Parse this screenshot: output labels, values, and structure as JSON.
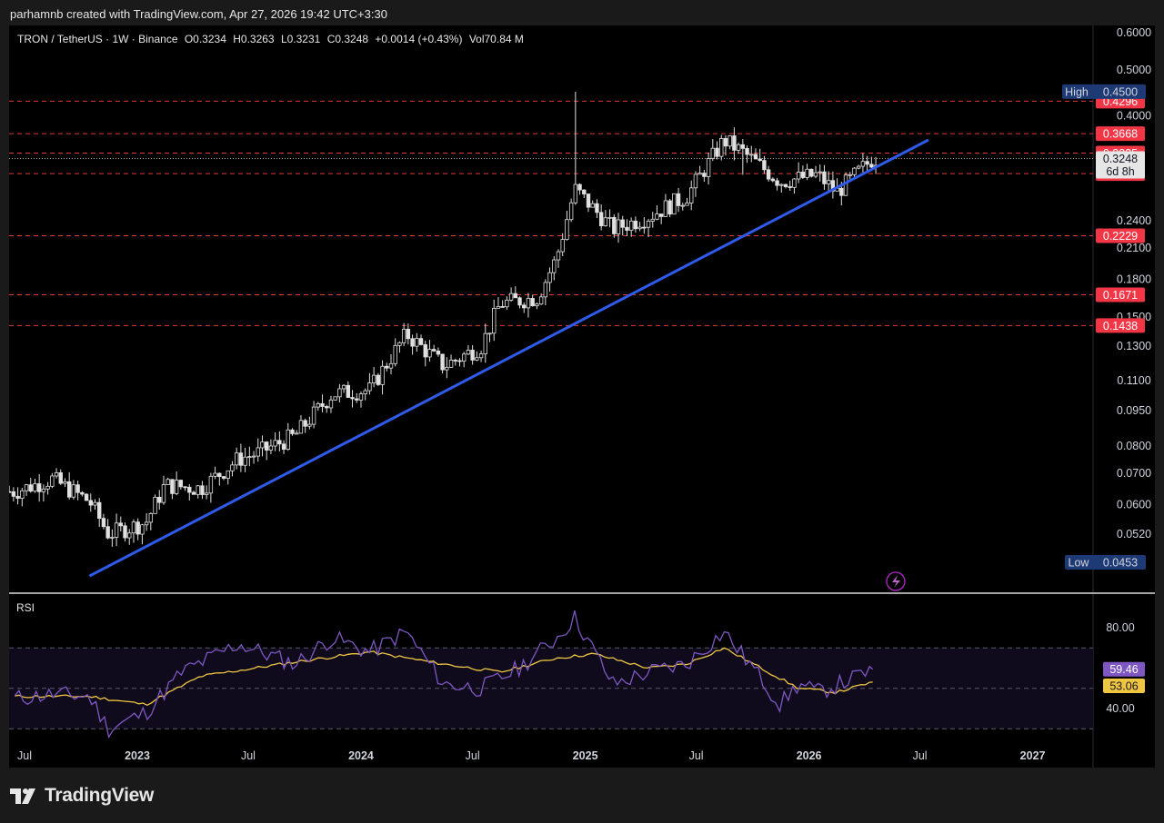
{
  "header": {
    "attribution": "parhamnb created with TradingView.com, Apr 27, 2026 19:42 UTC+3:30"
  },
  "legend": {
    "symbol": "TRON / TetherUS · 1W · Binance",
    "open": "O0.3234",
    "high": "H0.3263",
    "low": "L0.3231",
    "close": "C0.3248",
    "change": "+0.0014 (+0.43%)",
    "volume": "Vol70.84 M"
  },
  "footer": {
    "brand": "TradingView"
  },
  "colors": {
    "background": "#000000",
    "candle": "#e0e0e0",
    "trendline": "#2f5bea",
    "level_line": "#e53935",
    "level_badge": "#f23645",
    "high_low_badge": "#1e3a75",
    "rsi_line": "#7e57c2",
    "rsi_ma": "#f0c542"
  },
  "chart_data": [
    {
      "type": "candlestick",
      "title": "TRON / TetherUS · 1W · Binance",
      "scale": "log",
      "price_axis_ticks": [
        "0.6000",
        "0.5000",
        "0.4000",
        "0.2400",
        "0.2100",
        "0.1800",
        "0.1500",
        "0.1300",
        "0.1100",
        "0.0950",
        "0.0800",
        "0.0700",
        "0.0600",
        "0.0520"
      ],
      "time_axis_ticks": [
        "Jul",
        "2023",
        "Jul",
        "2024",
        "Jul",
        "2025",
        "Jul",
        "2026",
        "Jul",
        "2027"
      ],
      "last_price": "0.3248",
      "countdown": "6d 8h",
      "high_marker": {
        "label": "High",
        "value": "0.4500"
      },
      "low_marker": {
        "label": "Low",
        "value": "0.0453"
      },
      "horizontal_levels": [
        "0.4296",
        "0.3668",
        "0.3335",
        "0.3018",
        "0.2229",
        "0.1671",
        "0.1438"
      ],
      "trendline": {
        "from": {
          "date": "2022-10",
          "price": 0.0424
        },
        "to": {
          "date": "2026-07",
          "price": 0.3558
        }
      },
      "anchors": [
        {
          "date": "2022-06",
          "price": 0.064
        },
        {
          "date": "2022-08",
          "price": 0.068
        },
        {
          "date": "2022-10",
          "price": 0.061
        },
        {
          "date": "2022-11",
          "price": 0.052
        },
        {
          "date": "2023-01",
          "price": 0.055
        },
        {
          "date": "2023-02",
          "price": 0.066
        },
        {
          "date": "2023-04",
          "price": 0.065
        },
        {
          "date": "2023-06",
          "price": 0.075
        },
        {
          "date": "2023-07",
          "price": 0.077
        },
        {
          "date": "2023-09",
          "price": 0.084
        },
        {
          "date": "2023-11",
          "price": 0.103
        },
        {
          "date": "2024-01",
          "price": 0.105
        },
        {
          "date": "2024-03",
          "price": 0.138
        },
        {
          "date": "2024-05",
          "price": 0.118
        },
        {
          "date": "2024-07",
          "price": 0.13
        },
        {
          "date": "2024-08",
          "price": 0.16
        },
        {
          "date": "2024-10",
          "price": 0.165
        },
        {
          "date": "2024-11",
          "price": 0.2
        },
        {
          "date": "2024-12",
          "price": 0.28
        },
        {
          "date": "2025-02",
          "price": 0.23
        },
        {
          "date": "2025-04",
          "price": 0.245
        },
        {
          "date": "2025-06",
          "price": 0.27
        },
        {
          "date": "2025-08",
          "price": 0.355
        },
        {
          "date": "2025-09",
          "price": 0.335
        },
        {
          "date": "2025-11",
          "price": 0.29
        },
        {
          "date": "2026-01",
          "price": 0.3
        },
        {
          "date": "2026-02",
          "price": 0.275
        },
        {
          "date": "2026-04",
          "price": 0.3248
        }
      ],
      "spikes": [
        {
          "date": "2024-12",
          "high": 0.45
        },
        {
          "date": "2025-09",
          "low": 0.3
        }
      ]
    },
    {
      "type": "line",
      "title": "RSI",
      "y_ticks": [
        "80.00",
        "40.00"
      ],
      "band": [
        30,
        70
      ],
      "series": [
        {
          "value_label": "59.46",
          "anchors": [
            {
              "date": "2022-06",
              "value": 45
            },
            {
              "date": "2022-08",
              "value": 47
            },
            {
              "date": "2022-10",
              "value": 46
            },
            {
              "date": "2022-11",
              "value": 30
            },
            {
              "date": "2023-01",
              "value": 38
            },
            {
              "date": "2023-03",
              "value": 58
            },
            {
              "date": "2023-06",
              "value": 72
            },
            {
              "date": "2023-09",
              "value": 62
            },
            {
              "date": "2023-11",
              "value": 75
            },
            {
              "date": "2024-01",
              "value": 68
            },
            {
              "date": "2024-03",
              "value": 78
            },
            {
              "date": "2024-05",
              "value": 52
            },
            {
              "date": "2024-07",
              "value": 50
            },
            {
              "date": "2024-09",
              "value": 60
            },
            {
              "date": "2024-11",
              "value": 75
            },
            {
              "date": "2024-12",
              "value": 85
            },
            {
              "date": "2025-02",
              "value": 52
            },
            {
              "date": "2025-04",
              "value": 58
            },
            {
              "date": "2025-06",
              "value": 62
            },
            {
              "date": "2025-08",
              "value": 78
            },
            {
              "date": "2025-10",
              "value": 55
            },
            {
              "date": "2025-11",
              "value": 42
            },
            {
              "date": "2025-12",
              "value": 52
            },
            {
              "date": "2026-01",
              "value": 48
            },
            {
              "date": "2026-03",
              "value": 55
            },
            {
              "date": "2026-04",
              "value": 59.46
            }
          ]
        },
        {
          "value_label": "53.06",
          "anchors": [
            {
              "date": "2022-06",
              "value": 46
            },
            {
              "date": "2022-10",
              "value": 46
            },
            {
              "date": "2023-01",
              "value": 42
            },
            {
              "date": "2023-04",
              "value": 56
            },
            {
              "date": "2023-09",
              "value": 63
            },
            {
              "date": "2024-01",
              "value": 68
            },
            {
              "date": "2024-05",
              "value": 62
            },
            {
              "date": "2024-08",
              "value": 58
            },
            {
              "date": "2024-11",
              "value": 65
            },
            {
              "date": "2025-01",
              "value": 67
            },
            {
              "date": "2025-04",
              "value": 60
            },
            {
              "date": "2025-06",
              "value": 62
            },
            {
              "date": "2025-08",
              "value": 70
            },
            {
              "date": "2025-10",
              "value": 60
            },
            {
              "date": "2025-12",
              "value": 50
            },
            {
              "date": "2026-02",
              "value": 48
            },
            {
              "date": "2026-04",
              "value": 53.06
            }
          ]
        }
      ]
    }
  ]
}
